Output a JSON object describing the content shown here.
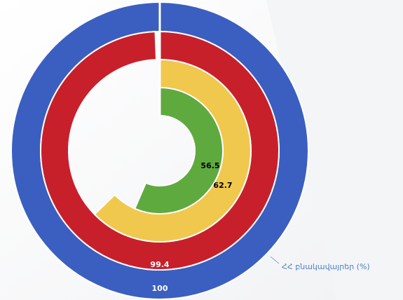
{
  "chart_data": {
    "type": "radial_bar",
    "values": [
      100,
      99.4,
      62.7,
      56.5
    ],
    "colors": [
      "#3b5fc0",
      "#c8202b",
      "#f0c84e",
      "#5faa3f"
    ],
    "ylim": [
      0,
      100
    ],
    "annotation": "ՀՀ բնակավայրեր (%)"
  }
}
